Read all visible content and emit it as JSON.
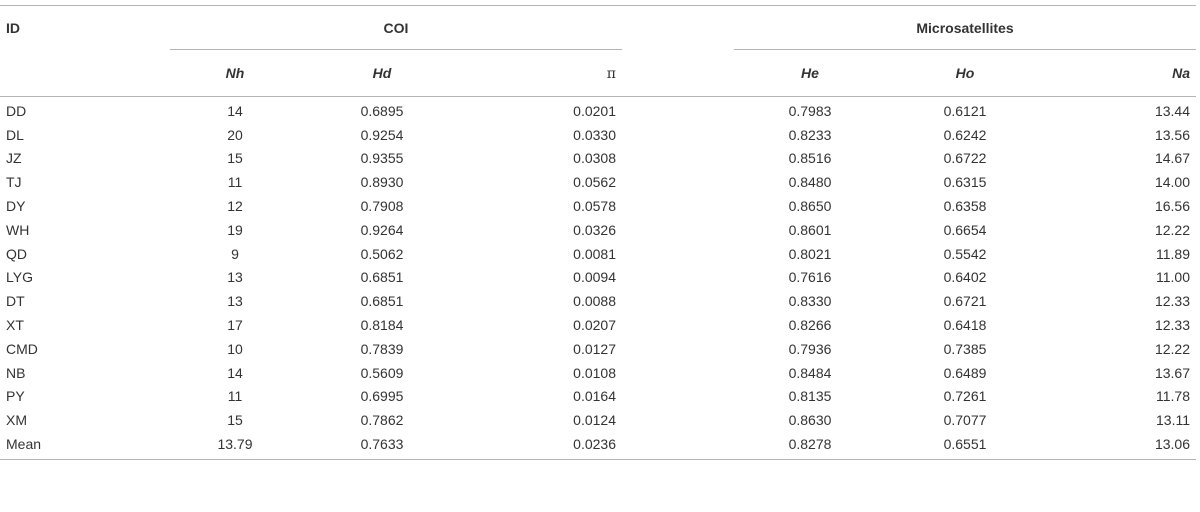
{
  "table": {
    "id_header": "ID",
    "group_coi": "COI",
    "group_micro": "Microsatellites",
    "sub_headers": [
      "Nh",
      "Hd",
      "π",
      "He",
      "Ho",
      "Na"
    ],
    "rows": [
      {
        "id": "DD",
        "nh": "14",
        "hd": "0.6895",
        "pi": "0.0201",
        "he": "0.7983",
        "ho": "0.6121",
        "na": "13.44"
      },
      {
        "id": "DL",
        "nh": "20",
        "hd": "0.9254",
        "pi": "0.0330",
        "he": "0.8233",
        "ho": "0.6242",
        "na": "13.56"
      },
      {
        "id": "JZ",
        "nh": "15",
        "hd": "0.9355",
        "pi": "0.0308",
        "he": "0.8516",
        "ho": "0.6722",
        "na": "14.67"
      },
      {
        "id": "TJ",
        "nh": "11",
        "hd": "0.8930",
        "pi": "0.0562",
        "he": "0.8480",
        "ho": "0.6315",
        "na": "14.00"
      },
      {
        "id": "DY",
        "nh": "12",
        "hd": "0.7908",
        "pi": "0.0578",
        "he": "0.8650",
        "ho": "0.6358",
        "na": "16.56"
      },
      {
        "id": "WH",
        "nh": "19",
        "hd": "0.9264",
        "pi": "0.0326",
        "he": "0.8601",
        "ho": "0.6654",
        "na": "12.22"
      },
      {
        "id": "QD",
        "nh": "9",
        "hd": "0.5062",
        "pi": "0.0081",
        "he": "0.8021",
        "ho": "0.5542",
        "na": "11.89"
      },
      {
        "id": "LYG",
        "nh": "13",
        "hd": "0.6851",
        "pi": "0.0094",
        "he": "0.7616",
        "ho": "0.6402",
        "na": "11.00"
      },
      {
        "id": "DT",
        "nh": "13",
        "hd": "0.6851",
        "pi": "0.0088",
        "he": "0.8330",
        "ho": "0.6721",
        "na": "12.33"
      },
      {
        "id": "XT",
        "nh": "17",
        "hd": "0.8184",
        "pi": "0.0207",
        "he": "0.8266",
        "ho": "0.6418",
        "na": "12.33"
      },
      {
        "id": "CMD",
        "nh": "10",
        "hd": "0.7839",
        "pi": "0.0127",
        "he": "0.7936",
        "ho": "0.7385",
        "na": "12.22"
      },
      {
        "id": "NB",
        "nh": "14",
        "hd": "0.5609",
        "pi": "0.0108",
        "he": "0.8484",
        "ho": "0.6489",
        "na": "13.67"
      },
      {
        "id": "PY",
        "nh": "11",
        "hd": "0.6995",
        "pi": "0.0164",
        "he": "0.8135",
        "ho": "0.7261",
        "na": "11.78"
      },
      {
        "id": "XM",
        "nh": "15",
        "hd": "0.7862",
        "pi": "0.0124",
        "he": "0.8630",
        "ho": "0.7077",
        "na": "13.11"
      },
      {
        "id": "Mean",
        "nh": "13.79",
        "hd": "0.7633",
        "pi": "0.0236",
        "he": "0.8278",
        "ho": "0.6551",
        "na": "13.06"
      }
    ]
  }
}
